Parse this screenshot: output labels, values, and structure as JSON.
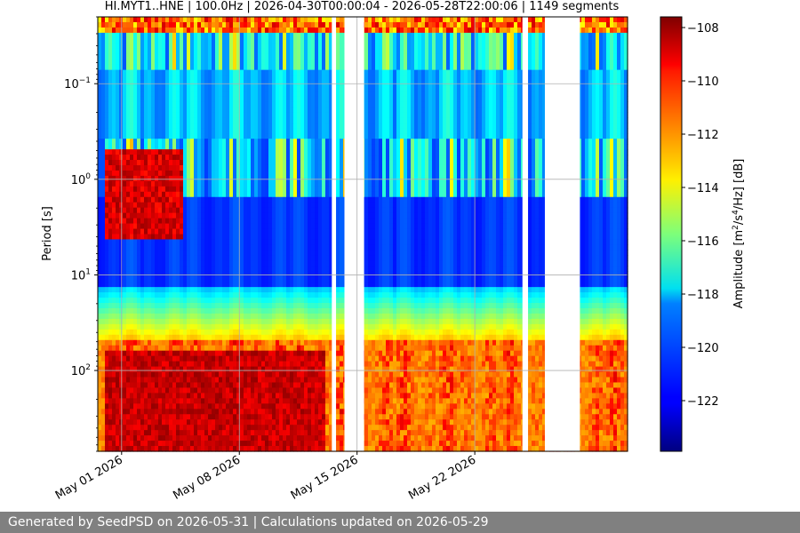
{
  "chart_data": {
    "type": "heatmap",
    "title": "HI.MYT1..HNE | 100.0Hz | 2026-04-30T00:00:04 - 2026-05-28T22:00:06 | 1149 segments",
    "ylabel": "Period [s]",
    "y_scale": "log",
    "ylim": [
      0.02,
      700
    ],
    "y_ticks": [
      {
        "value": 0.1,
        "base": "10",
        "exp": "−1"
      },
      {
        "value": 1,
        "base": "10",
        "exp": "0"
      },
      {
        "value": 10,
        "base": "10",
        "exp": "1"
      },
      {
        "value": 100,
        "base": "10",
        "exp": "2"
      }
    ],
    "x_type": "date",
    "xlim": [
      "2026-04-29T14:00:00",
      "2026-05-31T02:00:00"
    ],
    "x_ticks": [
      {
        "date": "2026-05-01",
        "label": "May 01 2026"
      },
      {
        "date": "2026-05-08",
        "label": "May 08 2026"
      },
      {
        "date": "2026-05-15",
        "label": "May 15 2026"
      },
      {
        "date": "2026-05-22",
        "label": "May 22 2026"
      }
    ],
    "grid": true,
    "colormap": "jet",
    "colorbar": {
      "label_base": "Amplitude [m",
      "label_sup1": "2",
      "label_mid": "/s",
      "label_sup2": "4",
      "label_end": "/Hz] [dB]",
      "range": [
        -123.9,
        -107.6
      ],
      "ticks": [
        "−108",
        "−110",
        "−112",
        "−114",
        "−116",
        "−118",
        "−120",
        "−122"
      ]
    },
    "data_gaps": [
      [
        "2026-05-13T12:00:00",
        "2026-05-13T18:00:00"
      ],
      [
        "2026-05-14T06:00:00",
        "2026-05-15T10:00:00"
      ],
      [
        "2026-05-24T20:00:00",
        "2026-05-25T04:00:00"
      ],
      [
        "2026-05-26T04:00:00",
        "2026-05-28T06:00:00"
      ]
    ],
    "features": [
      {
        "period_range": [
          0.5,
          4.0
        ],
        "time_range": [
          "2026-04-30T00:00:00",
          "2026-05-04T12:00:00"
        ],
        "level": -108
      },
      {
        "period_range": [
          60,
          700
        ],
        "time_range": [
          "2026-04-30T00:00:00",
          "2026-05-13T00:00:00"
        ],
        "level": -109
      }
    ]
  },
  "footer": {
    "text": "Generated by SeedPSD on 2026-05-31 | Calculations updated on 2026-05-29"
  }
}
